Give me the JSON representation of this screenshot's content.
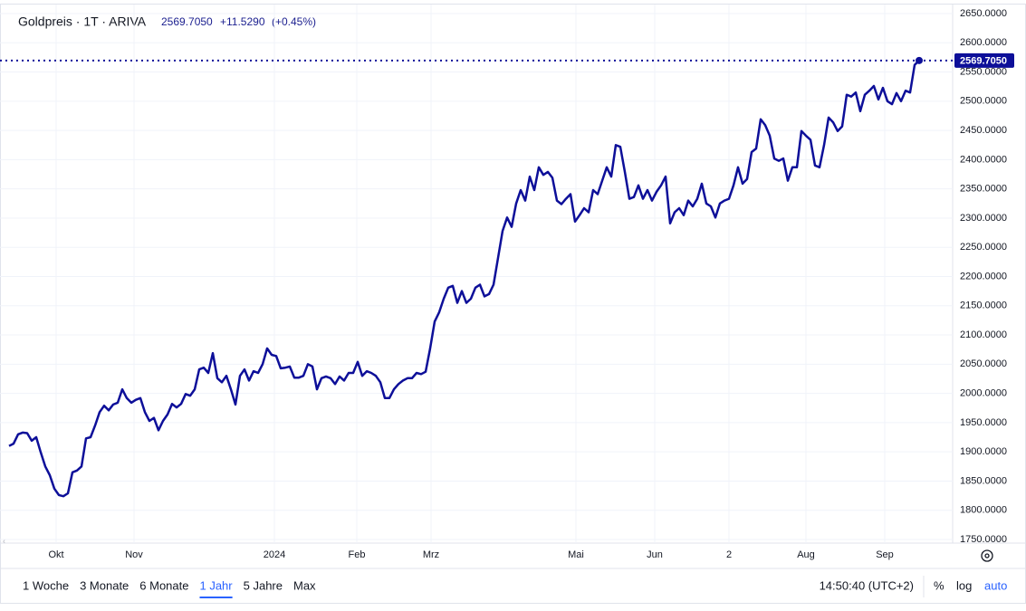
{
  "header": {
    "title": "Goldpreis · 1T · ARIVA",
    "price": "2569.7050",
    "change": "+11.5290",
    "change_pct": "(+0.45%)"
  },
  "chart_data": {
    "type": "line",
    "color": "#0d0f99",
    "grid": true,
    "values": [
      1910,
      1914,
      1930,
      1933,
      1932,
      1919,
      1925,
      1899,
      1875,
      1860,
      1837,
      1826,
      1824,
      1829,
      1865,
      1868,
      1875,
      1923,
      1925,
      1945,
      1968,
      1979,
      1971,
      1981,
      1984,
      2007,
      1992,
      1984,
      1989,
      1992,
      1968,
      1953,
      1958,
      1937,
      1953,
      1964,
      1982,
      1976,
      1982,
      1999,
      1996,
      2007,
      2041,
      2044,
      2035,
      2069,
      2026,
      2019,
      2030,
      2007,
      1981,
      2030,
      2041,
      2022,
      2038,
      2035,
      2050,
      2077,
      2066,
      2064,
      2043,
      2044,
      2046,
      2027,
      2027,
      2030,
      2050,
      2046,
      2007,
      2026,
      2029,
      2026,
      2016,
      2029,
      2022,
      2035,
      2035,
      2054,
      2030,
      2038,
      2035,
      2030,
      2019,
      1992,
      1992,
      2007,
      2016,
      2022,
      2026,
      2026,
      2035,
      2033,
      2037,
      2077,
      2123,
      2139,
      2162,
      2181,
      2184,
      2155,
      2175,
      2155,
      2162,
      2181,
      2186,
      2166,
      2170,
      2186,
      2232,
      2278,
      2301,
      2285,
      2325,
      2348,
      2330,
      2371,
      2348,
      2387,
      2374,
      2379,
      2369,
      2330,
      2324,
      2333,
      2341,
      2294,
      2305,
      2317,
      2310,
      2348,
      2341,
      2364,
      2387,
      2371,
      2425,
      2422,
      2379,
      2333,
      2336,
      2356,
      2333,
      2348,
      2330,
      2345,
      2356,
      2371,
      2291,
      2310,
      2317,
      2305,
      2330,
      2320,
      2333,
      2359,
      2325,
      2320,
      2301,
      2325,
      2330,
      2333,
      2356,
      2387,
      2359,
      2367,
      2413,
      2419,
      2469,
      2459,
      2441,
      2402,
      2398,
      2402,
      2364,
      2387,
      2387,
      2449,
      2441,
      2434,
      2390,
      2387,
      2425,
      2472,
      2464,
      2449,
      2457,
      2511,
      2508,
      2515,
      2483,
      2511,
      2518,
      2526,
      2503,
      2523,
      2500,
      2495,
      2514,
      2500,
      2518,
      2515,
      2562,
      2569.705
    ],
    "last_value": {
      "value": 2569.705,
      "label": "2569.7050"
    },
    "xlim": [
      0,
      208
    ],
    "xticks": [
      {
        "value": 10.4,
        "label": "Okt"
      },
      {
        "value": 27.6,
        "label": "Nov"
      },
      {
        "value": 58.6,
        "label": "2024"
      },
      {
        "value": 76.8,
        "label": "Feb"
      },
      {
        "value": 93.2,
        "label": "Mrz"
      },
      {
        "value": 125.2,
        "label": "Mai"
      },
      {
        "value": 142.6,
        "label": "Jun"
      },
      {
        "value": 159,
        "label": "2"
      },
      {
        "value": 176,
        "label": "Aug"
      },
      {
        "value": 193.4,
        "label": "Sep"
      }
    ],
    "ylim": [
      1750,
      2650
    ],
    "yticks": [
      {
        "value": 1750,
        "label": "1750.0000"
      },
      {
        "value": 1800,
        "label": "1800.0000"
      },
      {
        "value": 1850,
        "label": "1850.0000"
      },
      {
        "value": 1900,
        "label": "1900.0000"
      },
      {
        "value": 1950,
        "label": "1950.0000"
      },
      {
        "value": 2000,
        "label": "2000.0000"
      },
      {
        "value": 2050,
        "label": "2050.0000"
      },
      {
        "value": 2100,
        "label": "2100.0000"
      },
      {
        "value": 2150,
        "label": "2150.0000"
      },
      {
        "value": 2200,
        "label": "2200.0000"
      },
      {
        "value": 2250,
        "label": "2250.0000"
      },
      {
        "value": 2300,
        "label": "2300.0000"
      },
      {
        "value": 2350,
        "label": "2350.0000"
      },
      {
        "value": 2400,
        "label": "2400.0000"
      },
      {
        "value": 2450,
        "label": "2450.0000"
      },
      {
        "value": 2500,
        "label": "2500.0000"
      },
      {
        "value": 2550,
        "label": "2550.0000"
      },
      {
        "value": 2600,
        "label": "2600.0000"
      },
      {
        "value": 2650,
        "label": "2650.0000"
      }
    ]
  },
  "toolbar": {
    "ranges": [
      "1 Woche",
      "3 Monate",
      "6 Monate",
      "1 Jahr",
      "5 Jahre",
      "Max"
    ],
    "time": "14:50:40 (UTC+2)",
    "percent": "%",
    "log": "log",
    "auto": "auto"
  }
}
